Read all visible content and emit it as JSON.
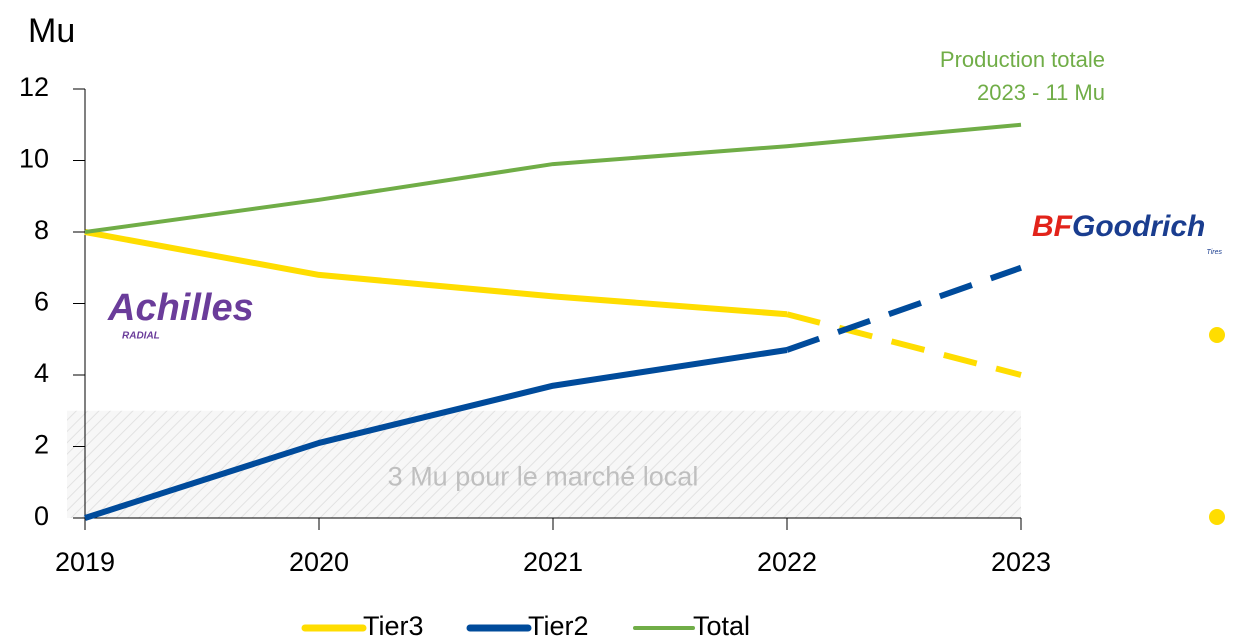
{
  "chart_data": {
    "type": "line",
    "y_label": "Mu",
    "categories": [
      "2019",
      "2020",
      "2021",
      "2022",
      "2023"
    ],
    "series": [
      {
        "name": "Tier3",
        "color": "#ffdd00",
        "values": [
          8,
          6.8,
          6.2,
          5.7,
          4
        ]
      },
      {
        "name": "Tier2",
        "color": "#004b9b",
        "values": [
          0,
          2.1,
          3.7,
          4.7,
          7
        ]
      },
      {
        "name": "Total",
        "color": "#70ad47",
        "values": [
          8,
          8.9,
          9.9,
          10.4,
          11
        ]
      }
    ],
    "dashed_from": "2022",
    "ylim": [
      0,
      12
    ],
    "yticks": [
      0,
      2,
      4,
      6,
      8,
      10,
      12
    ],
    "band": {
      "from": 0,
      "to": 3,
      "label": "3 Mu pour le marché local"
    },
    "annotation": [
      "Production totale",
      "2023 - 11 Mu"
    ],
    "logos": {
      "achilles": "Achilles",
      "achilles_sub": "RADIAL",
      "bf": "BF",
      "goodrich": "Goodrich",
      "goodrich_sub": "Tires"
    },
    "legend": "bottom"
  }
}
